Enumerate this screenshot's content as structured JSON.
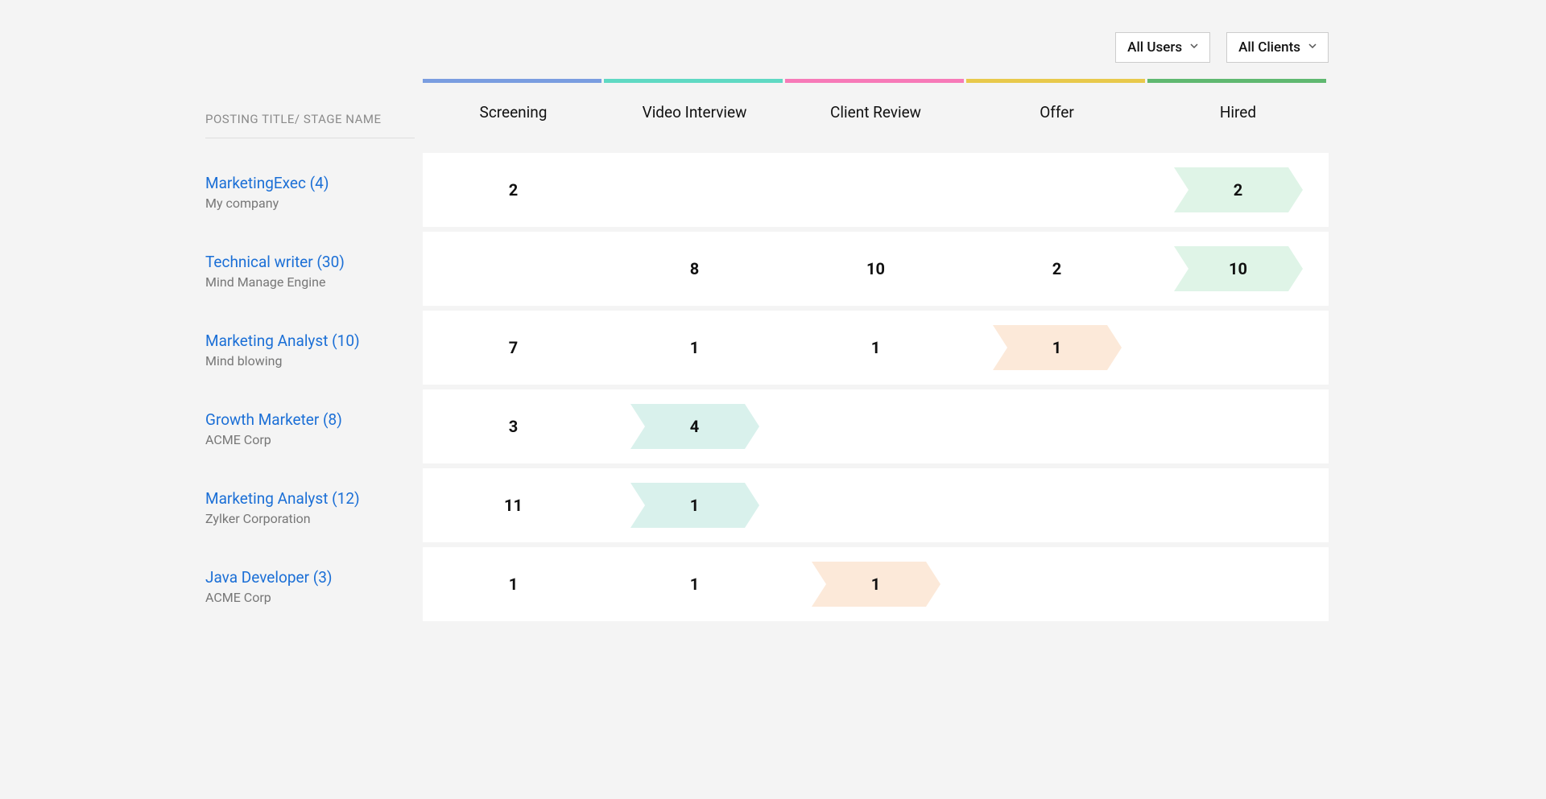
{
  "filters": {
    "users_label": "All Users",
    "clients_label": "All Clients"
  },
  "header": {
    "left_label": "POSTING TITLE/ STAGE NAME",
    "stages": [
      {
        "label": "Screening",
        "bar_color": "#7a9de0"
      },
      {
        "label": "Video Interview",
        "bar_color": "#5fd9c3"
      },
      {
        "label": "Client Review",
        "bar_color": "#f77ab8"
      },
      {
        "label": "Offer",
        "bar_color": "#e8c94b"
      },
      {
        "label": "Hired",
        "bar_color": "#5fb870"
      }
    ]
  },
  "arrow_colors": {
    "green": "#dff4e7",
    "teal": "#d9f1ec",
    "orange": "#fce9d9"
  },
  "rows": [
    {
      "title": "MarketingExec (4)",
      "subtitle": "My company",
      "cells": [
        {
          "value": "2"
        },
        {
          "value": ""
        },
        {
          "value": ""
        },
        {
          "value": ""
        },
        {
          "value": "2",
          "arrow": "green"
        }
      ]
    },
    {
      "title": "Technical writer (30)",
      "subtitle": "Mind Manage Engine",
      "cells": [
        {
          "value": ""
        },
        {
          "value": "8"
        },
        {
          "value": "10"
        },
        {
          "value": "2"
        },
        {
          "value": "10",
          "arrow": "green"
        }
      ]
    },
    {
      "title": "Marketing Analyst (10)",
      "subtitle": "Mind blowing",
      "cells": [
        {
          "value": "7"
        },
        {
          "value": "1"
        },
        {
          "value": "1"
        },
        {
          "value": "1",
          "arrow": "orange"
        },
        {
          "value": ""
        }
      ]
    },
    {
      "title": "Growth Marketer (8)",
      "subtitle": "ACME Corp",
      "cells": [
        {
          "value": "3"
        },
        {
          "value": "4",
          "arrow": "teal"
        },
        {
          "value": ""
        },
        {
          "value": ""
        },
        {
          "value": ""
        }
      ]
    },
    {
      "title": "Marketing Analyst (12)",
      "subtitle": "Zylker Corporation",
      "cells": [
        {
          "value": "11"
        },
        {
          "value": "1",
          "arrow": "teal"
        },
        {
          "value": ""
        },
        {
          "value": ""
        },
        {
          "value": ""
        }
      ]
    },
    {
      "title": "Java Developer (3)",
      "subtitle": "ACME Corp",
      "cells": [
        {
          "value": "1"
        },
        {
          "value": "1"
        },
        {
          "value": "1",
          "arrow": "orange"
        },
        {
          "value": ""
        },
        {
          "value": ""
        }
      ]
    }
  ],
  "style": {
    "page_bg": "#f4f4f4",
    "cell_bg": "#ffffff",
    "link_color": "#1b6fd6",
    "subtitle_color": "#777777",
    "header_label_color": "#8a8a8a"
  }
}
